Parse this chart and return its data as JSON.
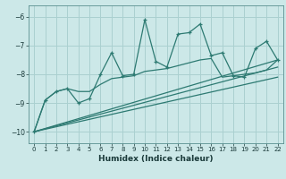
{
  "xlabel": "Humidex (Indice chaleur)",
  "ylabel": "",
  "bg_color": "#cce8e8",
  "grid_color": "#aad0d0",
  "line_color": "#2d7a72",
  "xlim": [
    -0.5,
    22.5
  ],
  "ylim": [
    -10.4,
    -5.6
  ],
  "yticks": [
    -10,
    -9,
    -8,
    -7,
    -6
  ],
  "xticks": [
    0,
    1,
    2,
    3,
    4,
    5,
    6,
    7,
    8,
    9,
    10,
    11,
    12,
    13,
    14,
    15,
    16,
    17,
    18,
    19,
    20,
    21,
    22
  ],
  "main_x": [
    0,
    1,
    2,
    3,
    4,
    5,
    6,
    7,
    8,
    9,
    10,
    11,
    12,
    13,
    14,
    15,
    16,
    17,
    18,
    19,
    20,
    21,
    22
  ],
  "main_y": [
    -10.0,
    -8.9,
    -8.6,
    -8.5,
    -9.0,
    -8.85,
    -8.0,
    -7.25,
    -8.05,
    -8.0,
    -6.1,
    -7.55,
    -7.75,
    -6.6,
    -6.55,
    -6.25,
    -7.35,
    -7.25,
    -8.05,
    -8.1,
    -7.1,
    -6.85,
    -7.5
  ],
  "line2_x": [
    0,
    1,
    2,
    3,
    4,
    5,
    6,
    7,
    8,
    9,
    10,
    11,
    12,
    13,
    14,
    15,
    16,
    17,
    18,
    19,
    20,
    21,
    22
  ],
  "line2_y": [
    -10.0,
    -8.9,
    -8.6,
    -8.5,
    -8.6,
    -8.6,
    -8.35,
    -8.15,
    -8.1,
    -8.05,
    -7.9,
    -7.85,
    -7.8,
    -7.7,
    -7.6,
    -7.5,
    -7.45,
    -8.1,
    -8.05,
    -8.0,
    -7.95,
    -7.85,
    -7.5
  ],
  "trend1": {
    "x": [
      0,
      22
    ],
    "y": [
      -10.0,
      -7.5
    ]
  },
  "trend2": {
    "x": [
      0,
      22
    ],
    "y": [
      -10.0,
      -7.75
    ]
  },
  "trend3": {
    "x": [
      0,
      22
    ],
    "y": [
      -10.0,
      -8.1
    ]
  }
}
